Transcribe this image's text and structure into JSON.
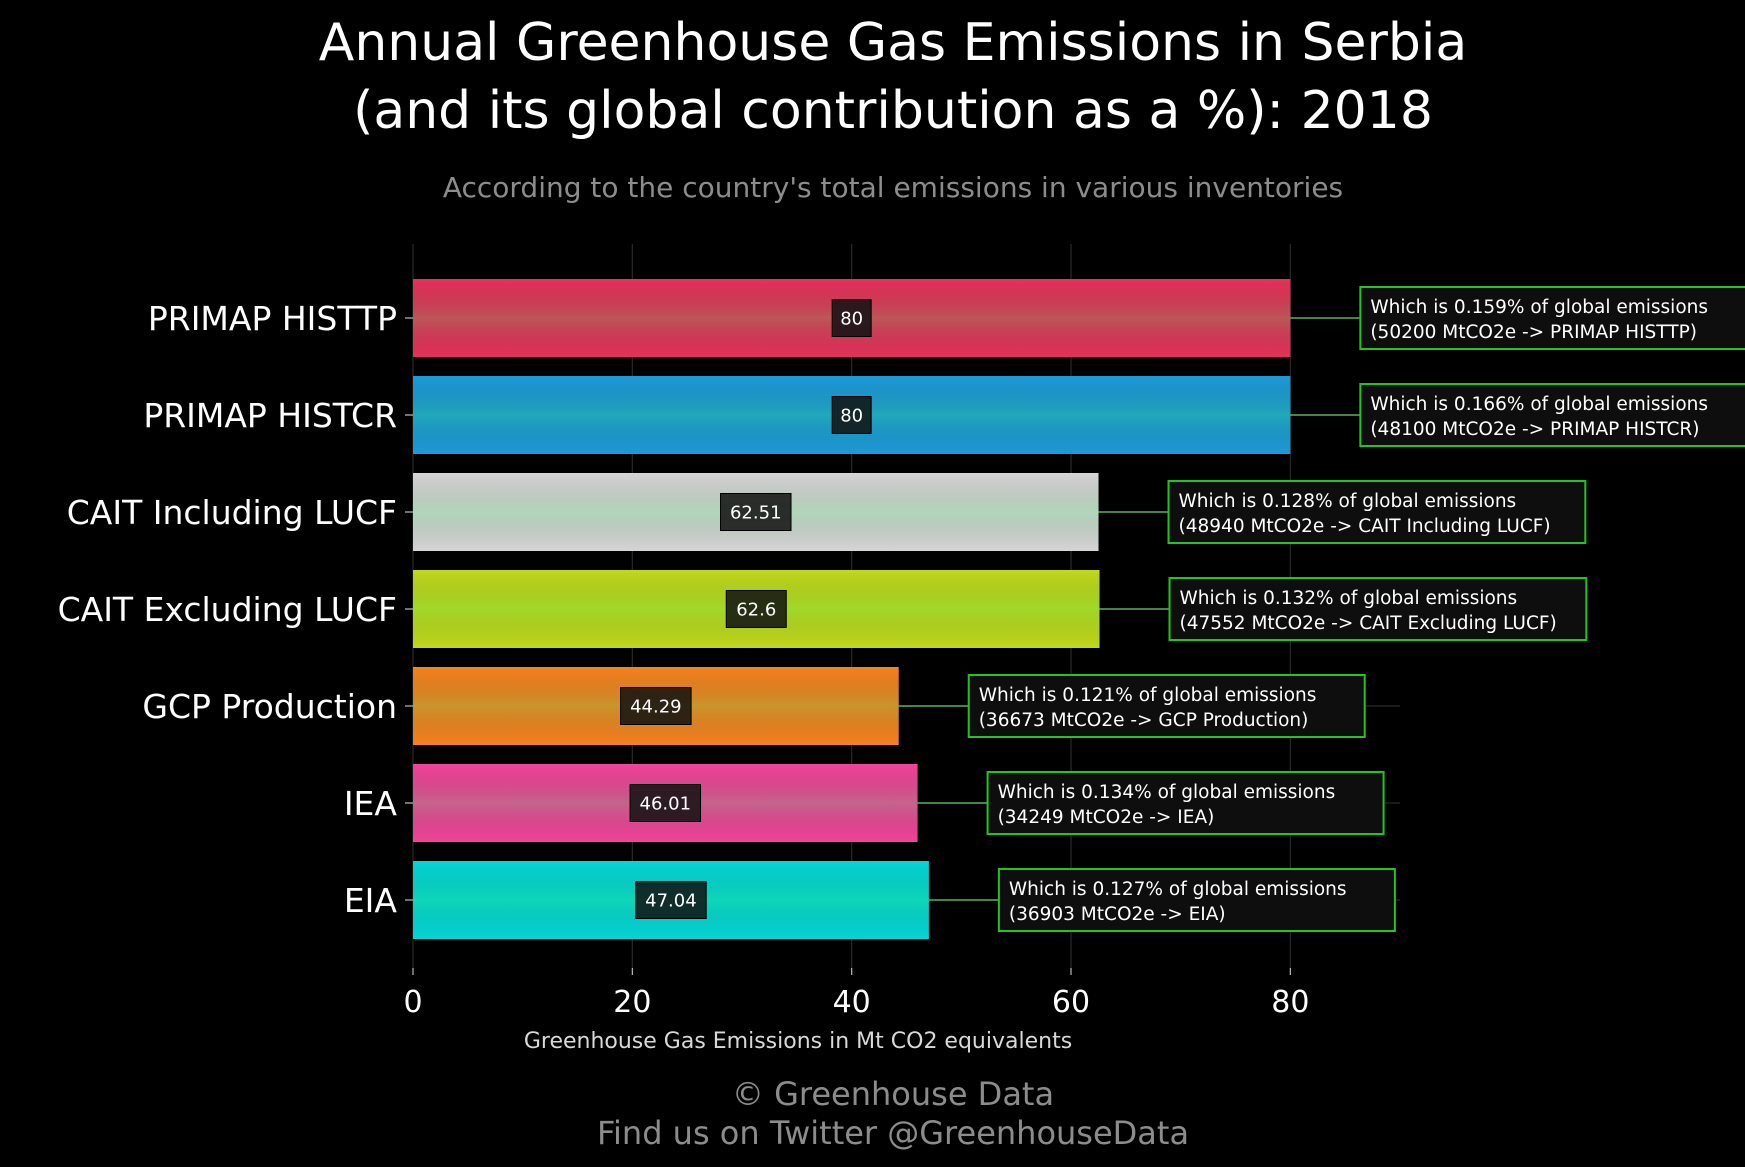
{
  "title": {
    "line1": "Annual Greenhouse Gas Emissions in Serbia",
    "line2": "(and its global contribution as a %): 2018"
  },
  "subtitle": "According to the country's total emissions in various inventories",
  "footer": {
    "line1": "© Greenhouse Data",
    "line2": "Find us on Twitter @GreenhouseData"
  },
  "chart_data": {
    "type": "bar",
    "orientation": "horizontal",
    "title": "Annual Greenhouse Gas Emissions in Serbia (and its global contribution as a %): 2018",
    "subtitle": "According to the country's total emissions in various inventories",
    "xlabel": "Greenhouse Gas Emissions in Mt CO2 equivalents",
    "ylabel": "",
    "xlim": [
      0,
      90
    ],
    "xticks": [
      0,
      20,
      40,
      60,
      80
    ],
    "xtick_labels": [
      "0",
      "20",
      "40",
      "60",
      "80"
    ],
    "grid": true,
    "legend": "none",
    "categories": [
      "PRIMAP HISTTP",
      "PRIMAP HISTCR",
      "CAIT Including LUCF",
      "CAIT Excluding LUCF",
      "GCP Production",
      "IEA",
      "EIA"
    ],
    "values": [
      80,
      80,
      62.51,
      62.6,
      44.29,
      46.01,
      47.04
    ],
    "value_labels": [
      "80",
      "80",
      "62.51",
      "62.6",
      "44.29",
      "46.01",
      "47.04"
    ],
    "colors": [
      "#e4335a",
      "#1e9ad8",
      "#d6d6d6",
      "#c1d91d",
      "#f58220",
      "#f0449a",
      "#06d6d6"
    ],
    "annotations": [
      {
        "line1": "Which is 0.159% of global emissions",
        "line2": "(50200 MtCO2e -> PRIMAP HISTTP)"
      },
      {
        "line1": "Which is 0.166% of global emissions",
        "line2": "(48100 MtCO2e -> PRIMAP HISTCR)"
      },
      {
        "line1": "Which is 0.128% of global emissions",
        "line2": "(48940 MtCO2e -> CAIT Including LUCF)"
      },
      {
        "line1": "Which is 0.132% of global emissions",
        "line2": "(47552 MtCO2e -> CAIT Excluding LUCF)"
      },
      {
        "line1": "Which is 0.121% of global emissions",
        "line2": "(36673 MtCO2e -> GCP Production)"
      },
      {
        "line1": "Which is 0.134% of global emissions",
        "line2": "(34249 MtCO2e -> IEA)"
      },
      {
        "line1": "Which is 0.127% of global emissions",
        "line2": "(36903 MtCO2e -> EIA)"
      }
    ],
    "annotation_border_color": "#22c422",
    "value_label_bg": "#111111"
  }
}
